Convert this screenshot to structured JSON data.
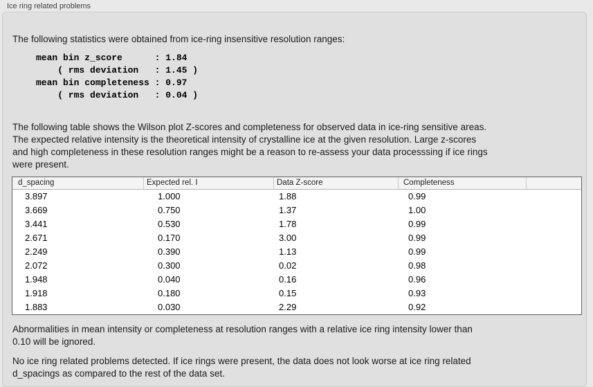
{
  "panel": {
    "caption": "Ice ring related problems"
  },
  "stats": {
    "intro": "The following statistics were obtained from ice-ring insensitive resolution ranges:",
    "block_lines": [
      "mean bin z_score      : 1.84",
      "    ( rms deviation   : 1.45 )",
      "mean bin completeness : 0.97",
      "    ( rms deviation   : 0.04 )"
    ]
  },
  "table_description_lines": [
    "The following table shows the Wilson plot Z-scores and completeness for observed data in ice-ring sensitive areas.",
    "The expected relative intensity is the theoretical intensity of crystalline ice at the given resolution. Large z-scores",
    "and high completeness in these resolution ranges might be a reason to re-assess your data processsing if ice rings",
    "were present."
  ],
  "table": {
    "columns": [
      "d_spacing",
      "Expected rel. I",
      "Data Z-score",
      "Completeness",
      ""
    ],
    "rows": [
      [
        "3.897",
        "1.000",
        "1.88",
        "0.99",
        ""
      ],
      [
        "3.669",
        "0.750",
        "1.37",
        "1.00",
        ""
      ],
      [
        "3.441",
        "0.530",
        "1.78",
        "0.99",
        ""
      ],
      [
        "2.671",
        "0.170",
        "3.00",
        "0.99",
        ""
      ],
      [
        "2.249",
        "0.390",
        "1.13",
        "0.99",
        ""
      ],
      [
        "2.072",
        "0.300",
        "0.02",
        "0.98",
        ""
      ],
      [
        "1.948",
        "0.040",
        "0.16",
        "0.96",
        ""
      ],
      [
        "1.918",
        "0.180",
        "0.15",
        "0.93",
        ""
      ],
      [
        "1.883",
        "0.030",
        "2.29",
        "0.92",
        ""
      ]
    ]
  },
  "ignore_note_lines": [
    "Abnormalities in mean intensity or completeness at resolution ranges with a relative ice ring intensity lower than",
    "0.10 will be ignored."
  ],
  "conclusion_lines": [
    "No ice ring related problems detected. If ice rings were present, the data does not look worse at ice ring related",
    "d_spacings as compared to the rest of the data set."
  ]
}
